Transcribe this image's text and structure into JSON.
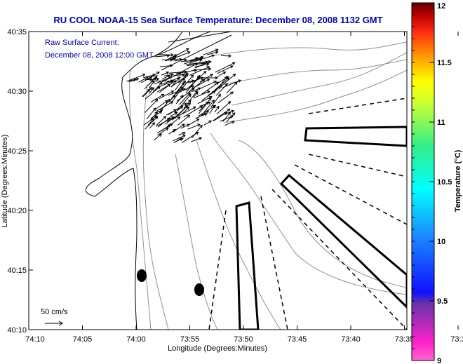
{
  "chart_data": {
    "type": "map",
    "title": "RU COOL  NOAA-15  Sea Surface Temperature:  December 08, 2008 1132 GMT",
    "annotation_lines": [
      "Raw Surface Current:",
      "December 08, 2008 12:00 GMT"
    ],
    "xlabel": "Longitude (Degrees:Minutes)",
    "ylabel": "Latitude (Degrees:Minutes)",
    "x_ticks": [
      "74:10",
      "74:05",
      "74:00",
      "73:55",
      "73:50",
      "73:45",
      "73:40",
      "73:35",
      "73:3"
    ],
    "y_ticks": [
      "40:35",
      "40:30",
      "40:25",
      "40:20",
      "40:15",
      "40:10"
    ],
    "scale_label": "50 cm/s",
    "colorbar": {
      "label": "Temperature (°C)",
      "range": [
        9,
        12
      ],
      "ticks": [
        "12",
        "11.5",
        "11",
        "10.5",
        "10",
        "9.5",
        "9"
      ]
    }
  },
  "colors": {
    "title": "#0000c0",
    "land": "#ffffff",
    "contour": "#909090"
  }
}
